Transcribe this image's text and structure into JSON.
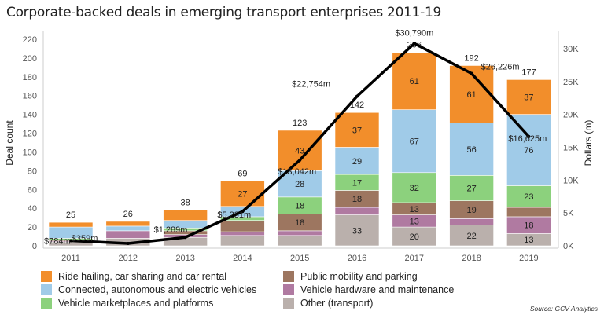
{
  "title": "Corporate-backed deals in emerging transport enterprises 2011-19",
  "source": "Source: GCV Analytics",
  "chart_data": {
    "type": "bar",
    "stacked": true,
    "title": "Corporate-backed deals in emerging transport enterprises 2011-19",
    "ylabel": "Deal count",
    "y2label": "Dollars (m)",
    "ylim": [
      0,
      220
    ],
    "y2lim": [
      0,
      31430
    ],
    "yticks": [
      "0",
      "20",
      "40",
      "60",
      "80",
      "100",
      "120",
      "140",
      "160",
      "180",
      "200",
      "220"
    ],
    "y2ticks": [
      "0K",
      "5K",
      "10K",
      "15K",
      "20K",
      "25K",
      "30K"
    ],
    "categories": [
      "2011",
      "2012",
      "2013",
      "2014",
      "2015",
      "2016",
      "2017",
      "2018",
      "2019"
    ],
    "totals": [
      "25",
      "26",
      "38",
      "69",
      "123",
      "142",
      "206",
      "192",
      "177"
    ],
    "series": [
      {
        "name": "Other (transport)",
        "color": "#BAB0AC",
        "values": [
          4,
          8,
          9,
          11,
          11,
          33,
          20,
          22,
          13
        ],
        "labels": [
          null,
          null,
          null,
          null,
          null,
          "33",
          "20",
          "22",
          "13"
        ]
      },
      {
        "name": "Vehicle hardware and maintenance",
        "color": "#B07AA1",
        "values": [
          1,
          8,
          3,
          4,
          5,
          8,
          13,
          7,
          18
        ],
        "labels": [
          null,
          null,
          null,
          null,
          null,
          null,
          "13",
          null,
          "18"
        ]
      },
      {
        "name": "Public mobility and parking",
        "color": "#9D7660",
        "values": [
          1,
          0,
          4,
          12,
          18,
          18,
          13,
          19,
          10
        ],
        "labels": [
          null,
          null,
          null,
          null,
          "18",
          "18",
          "13",
          "19",
          null
        ]
      },
      {
        "name": "Vehicle marketplaces and platforms",
        "color": "#8CD17D",
        "values": [
          2,
          0,
          3,
          4,
          18,
          17,
          32,
          27,
          23
        ],
        "labels": [
          null,
          null,
          null,
          null,
          "18",
          "17",
          "32",
          "27",
          "23"
        ]
      },
      {
        "name": "Connected, autonomous and electric vehicles",
        "color": "#A0CBE8",
        "values": [
          12,
          5,
          8,
          11,
          28,
          29,
          67,
          56,
          76
        ],
        "labels": [
          null,
          null,
          null,
          null,
          "28",
          "29",
          "67",
          "56",
          "76"
        ]
      },
      {
        "name": "Ride hailing, car sharing and car rental",
        "color": "#F28E2B",
        "values": [
          5,
          5,
          11,
          27,
          43,
          37,
          61,
          61,
          37
        ],
        "labels": [
          null,
          null,
          null,
          "27",
          "43",
          "37",
          "61",
          "61",
          "37"
        ]
      }
    ],
    "line": {
      "name": "Dollars (m)",
      "values": [
        784,
        359,
        1289,
        5231,
        13042,
        22754,
        30790,
        26226,
        16625
      ],
      "labels": [
        "$784m",
        "$359m",
        "$1,289m",
        "$5,231m",
        "$13,042m",
        "$22,754m",
        "$30,790m",
        "$26,226m",
        "$16,625m"
      ]
    },
    "legend": {
      "placement": "bottom",
      "items": [
        {
          "label": "Ride hailing, car sharing and car rental",
          "color": "#F28E2B"
        },
        {
          "label": "Connected, autonomous and electric vehicles",
          "color": "#A0CBE8"
        },
        {
          "label": "Vehicle marketplaces and platforms",
          "color": "#8CD17D"
        },
        {
          "label": "Public mobility and parking",
          "color": "#9D7660"
        },
        {
          "label": "Vehicle hardware and maintenance",
          "color": "#B07AA1"
        },
        {
          "label": "Other (transport)",
          "color": "#BAB0AC"
        }
      ]
    }
  }
}
